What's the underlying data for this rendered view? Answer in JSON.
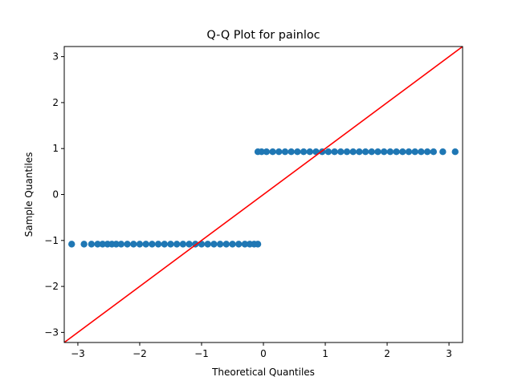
{
  "chart_data": {
    "type": "scatter",
    "title": "Q-Q Plot for painloc",
    "xlabel": "Theoretical Quantiles",
    "ylabel": "Sample Quantiles",
    "xlim": [
      -3.22,
      3.22
    ],
    "ylim": [
      -3.22,
      3.22
    ],
    "xticks": [
      -3,
      -2,
      -1,
      0,
      1,
      2,
      3
    ],
    "yticks": [
      -3,
      -2,
      -1,
      0,
      1,
      2,
      3
    ],
    "grid": false,
    "colors": {
      "points": "#1f77b4",
      "reference_line": "#ff0000"
    },
    "reference_line": {
      "slope": 1,
      "intercept": 0
    },
    "series": [
      {
        "values_y": -1.08,
        "x": [
          -3.1,
          -2.9,
          -2.78,
          -2.68,
          -2.6,
          -2.52,
          -2.45,
          -2.38,
          -2.3,
          -2.2,
          -2.1,
          -2.0,
          -1.9,
          -1.8,
          -1.7,
          -1.6,
          -1.5,
          -1.4,
          -1.3,
          -1.2,
          -1.1,
          -1.0,
          -0.9,
          -0.8,
          -0.7,
          -0.6,
          -0.5,
          -0.4,
          -0.3,
          -0.22,
          -0.15,
          -0.09
        ]
      },
      {
        "values_y": 0.93,
        "x": [
          -0.09,
          -0.03,
          0.05,
          0.15,
          0.25,
          0.35,
          0.45,
          0.55,
          0.65,
          0.75,
          0.85,
          0.95,
          1.05,
          1.15,
          1.25,
          1.35,
          1.45,
          1.55,
          1.65,
          1.75,
          1.85,
          1.95,
          2.05,
          2.15,
          2.25,
          2.35,
          2.45,
          2.55,
          2.65,
          2.75,
          2.9,
          3.1
        ]
      }
    ]
  }
}
